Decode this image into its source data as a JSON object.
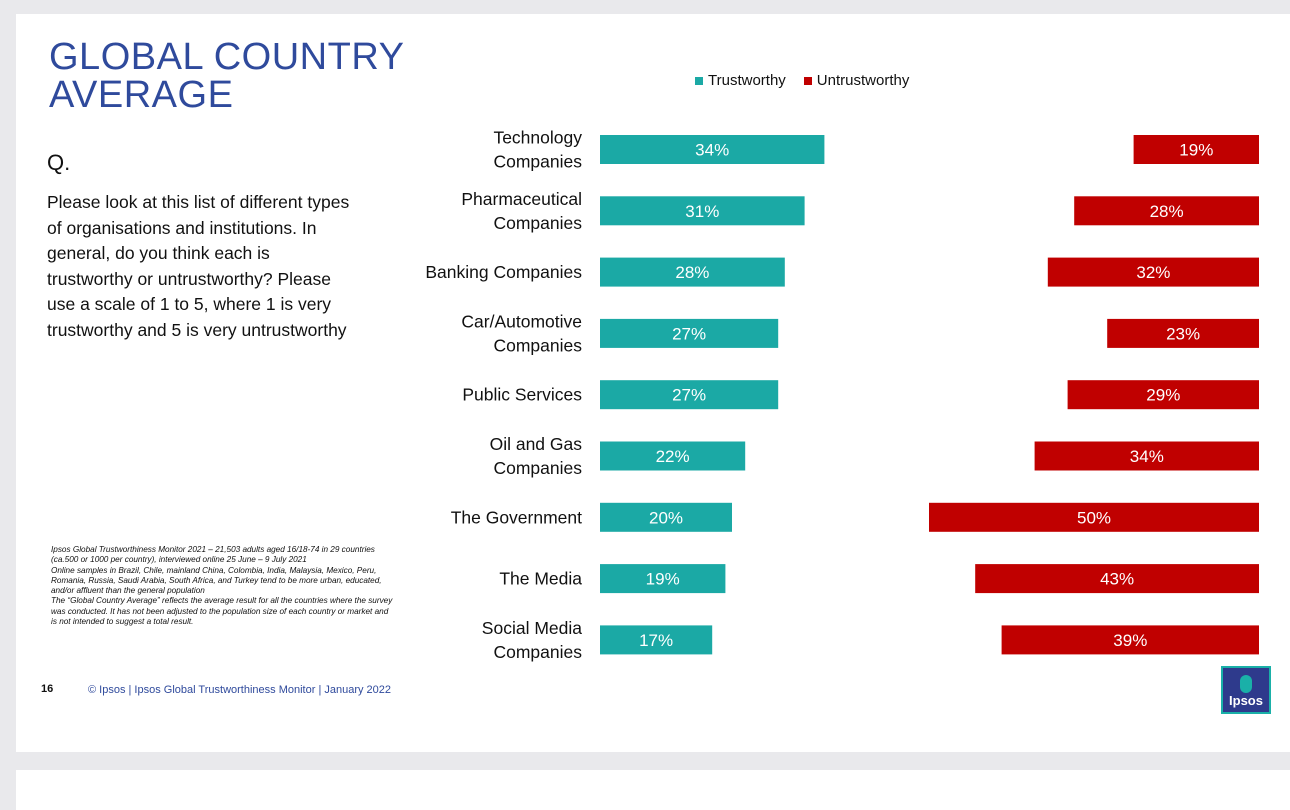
{
  "title_lines": [
    "GLOBAL COUNTRY",
    "AVERAGE"
  ],
  "question_marker": "Q.",
  "question_text": "Please look at this list of different types of organisations and institutions. In general, do you think each is trustworthy or untrustworthy?  Please use a scale of 1 to 5, where 1 is very trustworthy and 5 is very untrustworthy",
  "footnote": "Ipsos Global Trustworthiness Monitor 2021 – 21,503 adults aged 16/18-74 in 29 countries (ca.500 or 1000 per country), interviewed online 25 June – 9 July 2021\nOnline samples in Brazil, Chile, mainland China, Colombia, India, Malaysia, Mexico, Peru, Romania, Russia, Saudi Arabia, South Africa, and Turkey tend to be more urban, educated, and/or affluent than the general population\nThe “Global Country Average” reflects the average result for all the countries where the survey was conducted. It has not been adjusted to the population size of each country or market and is not intended to suggest a total result.",
  "page_number": "16",
  "footer_text": "© Ipsos | Ipsos Global Trustworthiness Monitor | January 2022",
  "logo_text": "Ipsos",
  "colors": {
    "trustworthy": "#1ba9a5",
    "untrustworthy": "#c00000",
    "title": "#2f4a9c"
  },
  "chart_data": {
    "type": "bar",
    "orientation": "horizontal",
    "categories": [
      [
        "Technology",
        "Companies"
      ],
      [
        "Pharmaceutical",
        "Companies"
      ],
      [
        "Banking Companies"
      ],
      [
        "Car/Automotive",
        "Companies"
      ],
      [
        "Public Services"
      ],
      [
        "Oil and Gas",
        "Companies"
      ],
      [
        "The Government"
      ],
      [
        "The Media"
      ],
      [
        "Social Media",
        "Companies"
      ]
    ],
    "series": [
      {
        "name": "Trustworthy",
        "values": [
          34,
          31,
          28,
          27,
          27,
          22,
          20,
          19,
          17
        ],
        "labels": [
          "34%",
          "31%",
          "28%",
          "27%",
          "27%",
          "22%",
          "20%",
          "19%",
          "17%"
        ]
      },
      {
        "name": "Untrustworthy",
        "values": [
          19,
          28,
          32,
          23,
          29,
          34,
          50,
          43,
          39
        ],
        "labels": [
          "19%",
          "28%",
          "32%",
          "23%",
          "29%",
          "34%",
          "50%",
          "43%",
          "39%"
        ]
      }
    ],
    "legend": [
      "Trustworthy",
      "Untrustworthy"
    ],
    "legend_position": "top",
    "unit": "%"
  }
}
